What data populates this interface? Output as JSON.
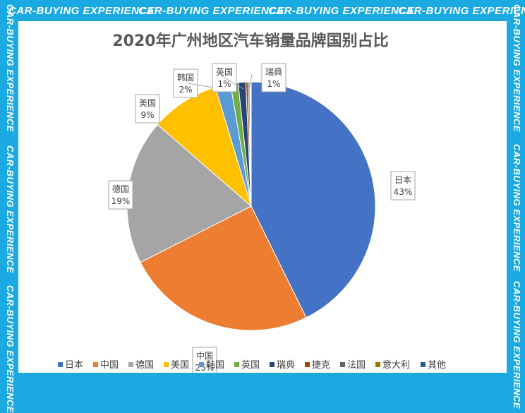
{
  "watermark": "CAR-BUYING EXPERIENCE",
  "chart_data": {
    "type": "pie",
    "title": "2020年广州地区汽车销量品牌国别占比",
    "categories": [
      "日本",
      "中国",
      "德国",
      "美国",
      "韩国",
      "英国",
      "瑞典",
      "捷克",
      "法国",
      "意大利",
      "其他"
    ],
    "values": [
      43,
      25,
      19,
      9,
      2,
      1,
      1,
      0.3,
      0.2,
      0.1,
      0.1
    ],
    "data_labels": [
      "43%",
      "25%",
      "19%",
      "9%",
      "2%",
      "1%",
      "1%",
      "",
      "",
      "",
      ""
    ],
    "colors": [
      "#4472c4",
      "#ed7d31",
      "#a5a5a5",
      "#ffc000",
      "#5b9bd5",
      "#70ad47",
      "#264478",
      "#9e480e",
      "#636363",
      "#997300",
      "#255e91"
    ],
    "legend_position": "bottom"
  }
}
